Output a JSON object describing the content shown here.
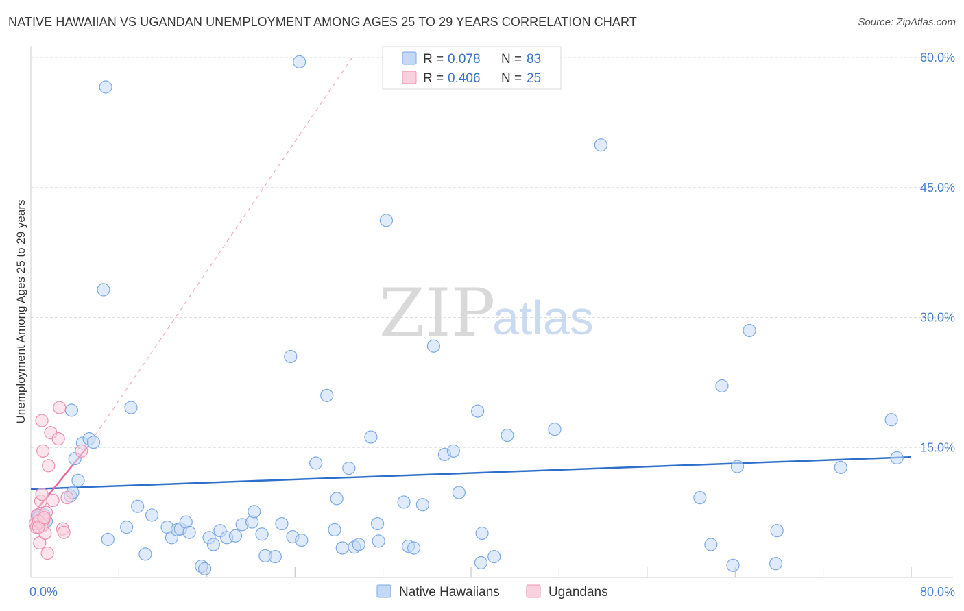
{
  "title": "NATIVE HAWAIIAN VS UGANDAN UNEMPLOYMENT AMONG AGES 25 TO 29 YEARS CORRELATION CHART",
  "source": "Source: ZipAtlas.com",
  "watermark": {
    "zip": "ZIP",
    "atlas": "atlas"
  },
  "colors": {
    "blue": "#7aaae8",
    "blue_fill": "#c4d9f5",
    "blue_line": "#2f6fcc",
    "pink": "#f08fb0",
    "pink_fill": "#f9d0dd",
    "pink_line": "#e8679a",
    "grid": "#dddddd",
    "tick": "#4a7fd0"
  },
  "legend": {
    "r_label": "R =",
    "n_label": "N =",
    "items": [
      {
        "series": "Native Hawaiians",
        "r": "0.078",
        "n": "83"
      },
      {
        "series": "Ugandans",
        "r": "0.406",
        "n": "25"
      }
    ]
  },
  "chart_data": {
    "type": "scatter",
    "title": "NATIVE HAWAIIAN VS UGANDAN UNEMPLOYMENT AMONG AGES 25 TO 29 YEARS CORRELATION CHART",
    "xlabel": "",
    "ylabel": "Unemployment Among Ages 25 to 29 years",
    "xlim": [
      0,
      80
    ],
    "ylim": [
      0,
      62
    ],
    "x_tick_labels": [
      {
        "value": 0,
        "label": "0.0%"
      },
      {
        "value": 80,
        "label": "80.0%"
      }
    ],
    "y_ticks": [
      {
        "value": 15,
        "label": "15.0%"
      },
      {
        "value": 30,
        "label": "30.0%"
      },
      {
        "value": 45,
        "label": "45.0%"
      },
      {
        "value": 60,
        "label": "60.0%"
      }
    ],
    "x_minor_ticks": [
      8,
      16,
      24,
      32,
      40,
      48,
      56,
      64,
      72,
      80
    ],
    "series": [
      {
        "name": "Native Hawaiians",
        "color": "#7aaae8",
        "trend": {
          "x0": 0,
          "y0": 10.2,
          "x1": 80,
          "y1": 13.9,
          "style": "solid"
        },
        "points": [
          [
            0.6,
            7.1
          ],
          [
            0.7,
            6.9
          ],
          [
            1.2,
            7.2
          ],
          [
            1.4,
            6.5
          ],
          [
            3.6,
            9.4
          ],
          [
            4.0,
            13.7
          ],
          [
            3.8,
            9.8
          ],
          [
            4.3,
            11.2
          ],
          [
            3.7,
            19.3
          ],
          [
            4.7,
            15.5
          ],
          [
            5.3,
            16.0
          ],
          [
            5.7,
            15.6
          ],
          [
            6.8,
            56.6
          ],
          [
            6.6,
            33.2
          ],
          [
            7.0,
            4.4
          ],
          [
            8.7,
            5.8
          ],
          [
            9.1,
            19.6
          ],
          [
            9.7,
            8.2
          ],
          [
            10.4,
            2.7
          ],
          [
            11.0,
            7.2
          ],
          [
            12.4,
            5.8
          ],
          [
            12.8,
            4.6
          ],
          [
            13.3,
            5.5
          ],
          [
            13.6,
            5.6
          ],
          [
            14.1,
            6.4
          ],
          [
            14.4,
            5.2
          ],
          [
            15.5,
            1.3
          ],
          [
            15.8,
            1.0
          ],
          [
            16.2,
            4.6
          ],
          [
            16.6,
            3.8
          ],
          [
            17.2,
            5.4
          ],
          [
            17.8,
            4.6
          ],
          [
            18.6,
            4.8
          ],
          [
            19.2,
            6.1
          ],
          [
            20.1,
            6.4
          ],
          [
            20.3,
            7.6
          ],
          [
            21.0,
            5.0
          ],
          [
            21.3,
            2.5
          ],
          [
            22.2,
            2.4
          ],
          [
            22.8,
            6.2
          ],
          [
            23.6,
            25.5
          ],
          [
            23.8,
            4.7
          ],
          [
            24.6,
            4.3
          ],
          [
            24.4,
            59.5
          ],
          [
            25.9,
            13.2
          ],
          [
            26.9,
            21.0
          ],
          [
            27.6,
            5.5
          ],
          [
            27.8,
            9.1
          ],
          [
            28.3,
            3.4
          ],
          [
            28.9,
            12.6
          ],
          [
            29.4,
            3.5
          ],
          [
            29.8,
            3.8
          ],
          [
            30.9,
            16.2
          ],
          [
            31.5,
            6.2
          ],
          [
            31.6,
            4.2
          ],
          [
            32.3,
            41.2
          ],
          [
            33.9,
            8.7
          ],
          [
            34.3,
            3.6
          ],
          [
            34.8,
            3.4
          ],
          [
            35.6,
            8.4
          ],
          [
            36.6,
            26.7
          ],
          [
            37.6,
            14.2
          ],
          [
            38.4,
            14.6
          ],
          [
            38.9,
            9.8
          ],
          [
            40.6,
            19.2
          ],
          [
            41.0,
            5.1
          ],
          [
            40.9,
            1.7
          ],
          [
            42.1,
            2.4
          ],
          [
            43.3,
            16.4
          ],
          [
            47.6,
            17.1
          ],
          [
            51.8,
            49.9
          ],
          [
            60.8,
            9.2
          ],
          [
            61.8,
            3.8
          ],
          [
            62.8,
            22.1
          ],
          [
            63.8,
            1.4
          ],
          [
            64.2,
            12.8
          ],
          [
            65.3,
            28.5
          ],
          [
            67.7,
            1.6
          ],
          [
            67.8,
            5.4
          ],
          [
            73.6,
            12.7
          ],
          [
            78.2,
            18.2
          ],
          [
            78.7,
            13.8
          ],
          [
            1.0,
            6.1
          ]
        ]
      },
      {
        "name": "Ugandans",
        "color": "#f08fb0",
        "trend": {
          "x0": 0,
          "y0": 7.0,
          "x1": 5.1,
          "y1": 15.0,
          "style": "solid"
        },
        "trend_extension": {
          "x0": 5.1,
          "y0": 15.0,
          "x1": 29.2,
          "y1": 60.0,
          "style": "dashed"
        },
        "points": [
          [
            0.4,
            6.2
          ],
          [
            0.5,
            5.8
          ],
          [
            0.6,
            7.2
          ],
          [
            0.7,
            6.5
          ],
          [
            0.8,
            4.0
          ],
          [
            0.9,
            8.8
          ],
          [
            1.0,
            9.6
          ],
          [
            1.1,
            6.0
          ],
          [
            1.2,
            6.7
          ],
          [
            1.3,
            5.1
          ],
          [
            1.4,
            7.5
          ],
          [
            1.5,
            2.8
          ],
          [
            1.6,
            12.9
          ],
          [
            1.0,
            18.1
          ],
          [
            1.1,
            14.6
          ],
          [
            1.8,
            16.7
          ],
          [
            2.0,
            8.9
          ],
          [
            2.5,
            16.0
          ],
          [
            2.6,
            19.6
          ],
          [
            2.9,
            5.6
          ],
          [
            3.0,
            5.2
          ],
          [
            3.3,
            9.2
          ],
          [
            4.6,
            14.6
          ],
          [
            0.7,
            5.8
          ],
          [
            1.2,
            6.9
          ]
        ]
      }
    ]
  }
}
